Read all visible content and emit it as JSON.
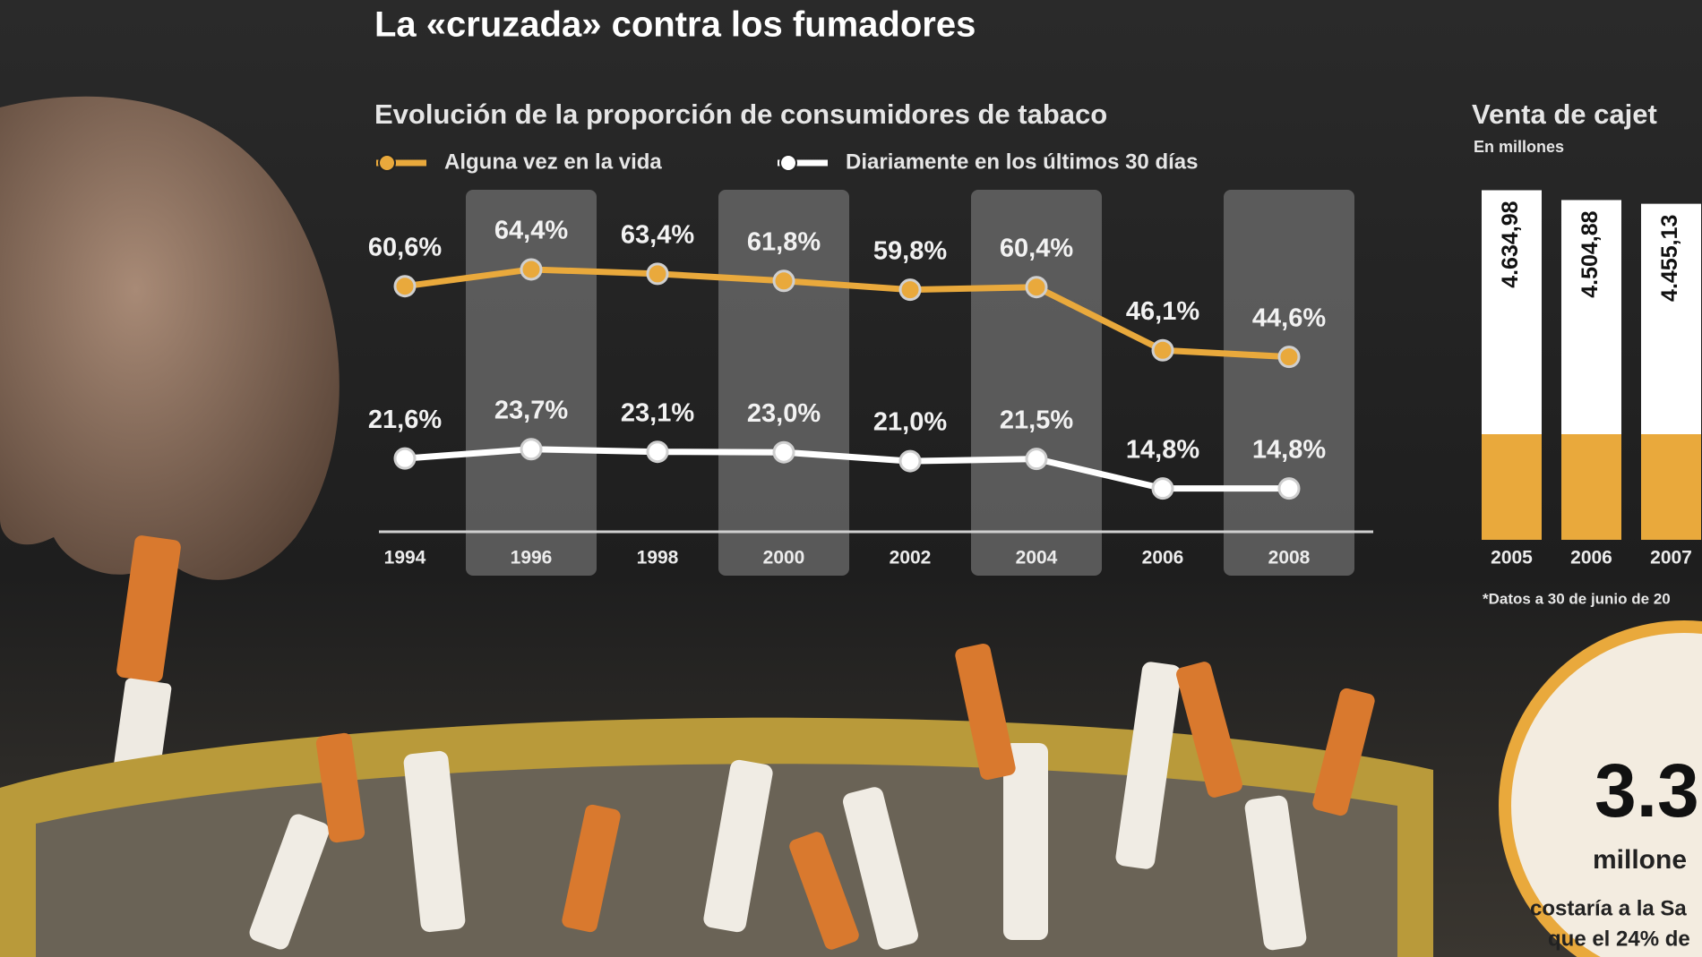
{
  "title": "La «cruzada» contra los fumadores",
  "chart_data": [
    {
      "type": "line",
      "title": "Evolución de la proporción de consumidores de tabaco",
      "categories": [
        "1994",
        "1996",
        "1998",
        "2000",
        "2002",
        "2004",
        "2006",
        "2008"
      ],
      "ylim": [
        5,
        80
      ],
      "series": [
        {
          "name": "Alguna vez en la vida",
          "color": "#e9a93c",
          "values": [
            60.6,
            64.4,
            63.4,
            61.8,
            59.8,
            60.4,
            46.1,
            44.6
          ],
          "value_labels": [
            "60,6%",
            "64,4%",
            "63,4%",
            "61,8%",
            "59,8%",
            "60,4%",
            "46,1%",
            "44,6%"
          ]
        },
        {
          "name": "Diariamente en los últimos 30 días",
          "color": "#ffffff",
          "values": [
            21.6,
            23.7,
            23.1,
            23.0,
            21.0,
            21.5,
            14.8,
            14.8
          ],
          "value_labels": [
            "21,6%",
            "23,7%",
            "23,1%",
            "23,0%",
            "21,0%",
            "21,5%",
            "14,8%",
            "14,8%"
          ]
        }
      ]
    },
    {
      "type": "bar",
      "title": "Venta de cajet",
      "subtitle": "En millones",
      "categories": [
        "2005",
        "2006",
        "2007"
      ],
      "values": [
        4634.98,
        4504.88,
        4455.13
      ],
      "value_labels": [
        "4.634,98",
        "4.504,88",
        "4.455,13"
      ],
      "ylim": [
        0,
        4700
      ],
      "color": "#ffffff",
      "note": "*Datos a 30 de junio de 20"
    }
  ],
  "callout": {
    "value": "3.3",
    "unit": "millone",
    "line1": "costaría a la Sa",
    "line2": "que el 24% de"
  }
}
